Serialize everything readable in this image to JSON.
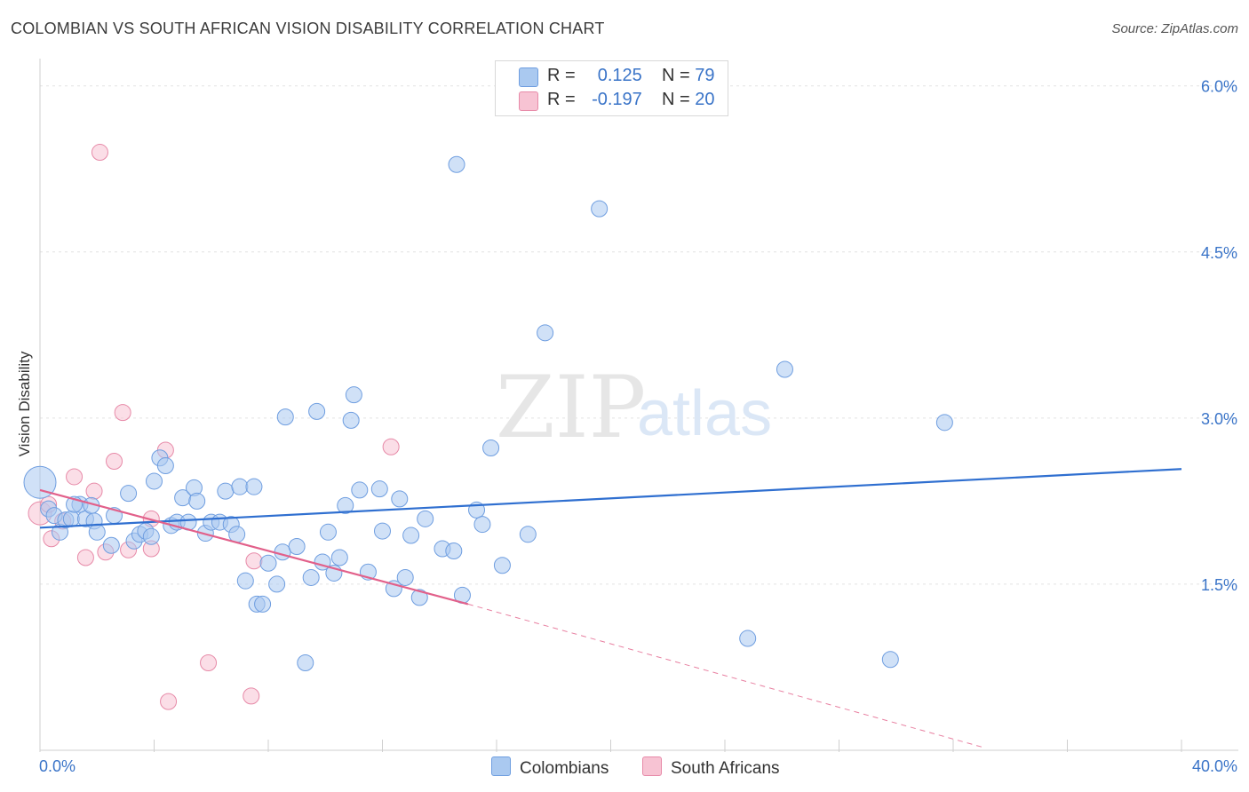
{
  "title": "COLOMBIAN VS SOUTH AFRICAN VISION DISABILITY CORRELATION CHART",
  "source": "Source: ZipAtlas.com",
  "watermark": {
    "zip": "ZIP",
    "atlas": "atlas"
  },
  "legend": {
    "rows": [
      {
        "r_label": "R =",
        "r_value": "0.125",
        "n_label": "N =",
        "n_value": "79",
        "color": "#aac9f0",
        "border": "#6f9ee0"
      },
      {
        "r_label": "R =",
        "r_value": "-0.197",
        "n_label": "N =",
        "n_value": "20",
        "color": "#f7c3d3",
        "border": "#e78aa8"
      }
    ]
  },
  "bottom_legend": [
    {
      "label": "Colombians",
      "color": "#aac9f0",
      "border": "#6f9ee0"
    },
    {
      "label": "South Africans",
      "color": "#f7c3d3",
      "border": "#e78aa8"
    }
  ],
  "chart_data": {
    "type": "scatter",
    "title": "COLOMBIAN VS SOUTH AFRICAN VISION DISABILITY CORRELATION CHART",
    "xlabel": "",
    "ylabel": "Vision Disability",
    "xlim": [
      0,
      40
    ],
    "ylim": [
      0,
      6.15
    ],
    "x_tick_labels": [
      "0.0%",
      "40.0%"
    ],
    "y_ticks": [
      1.5,
      3.0,
      4.5,
      6.0
    ],
    "y_tick_labels": [
      "1.5%",
      "3.0%",
      "4.5%",
      "6.0%"
    ],
    "grid": true,
    "legend_position": "top-center",
    "series": [
      {
        "name": "Colombians",
        "color": "#6f9ee0",
        "fill": "#aac9f0",
        "trend": {
          "x": [
            0,
            40
          ],
          "y": [
            2.01,
            2.54
          ],
          "color": "#2f6fd0"
        },
        "points": [
          [
            0.0,
            2.42
          ],
          [
            0.3,
            2.18
          ],
          [
            0.5,
            2.12
          ],
          [
            0.7,
            1.97
          ],
          [
            0.9,
            2.08
          ],
          [
            1.1,
            2.09
          ],
          [
            1.4,
            2.22
          ],
          [
            1.6,
            2.09
          ],
          [
            1.8,
            2.21
          ],
          [
            1.9,
            2.07
          ],
          [
            2.0,
            1.97
          ],
          [
            2.6,
            2.12
          ],
          [
            2.5,
            1.85
          ],
          [
            3.1,
            2.32
          ],
          [
            3.3,
            1.89
          ],
          [
            3.5,
            1.95
          ],
          [
            3.7,
            1.98
          ],
          [
            3.9,
            1.93
          ],
          [
            4.0,
            2.43
          ],
          [
            4.2,
            2.64
          ],
          [
            4.4,
            2.57
          ],
          [
            4.6,
            2.03
          ],
          [
            4.8,
            2.06
          ],
          [
            5.0,
            2.28
          ],
          [
            5.2,
            2.06
          ],
          [
            5.4,
            2.37
          ],
          [
            5.5,
            2.25
          ],
          [
            5.8,
            1.96
          ],
          [
            6.0,
            2.06
          ],
          [
            6.3,
            2.06
          ],
          [
            6.5,
            2.34
          ],
          [
            6.7,
            2.04
          ],
          [
            6.9,
            1.95
          ],
          [
            7.0,
            2.38
          ],
          [
            7.5,
            2.38
          ],
          [
            7.2,
            1.53
          ],
          [
            7.6,
            1.32
          ],
          [
            7.8,
            1.32
          ],
          [
            8.0,
            1.69
          ],
          [
            8.3,
            1.5
          ],
          [
            8.5,
            1.79
          ],
          [
            8.6,
            3.01
          ],
          [
            9.0,
            1.84
          ],
          [
            9.3,
            0.79
          ],
          [
            9.5,
            1.56
          ],
          [
            9.7,
            3.06
          ],
          [
            9.9,
            1.7
          ],
          [
            10.1,
            1.97
          ],
          [
            10.3,
            1.6
          ],
          [
            10.5,
            1.74
          ],
          [
            10.7,
            2.21
          ],
          [
            10.9,
            2.98
          ],
          [
            11.0,
            3.21
          ],
          [
            11.2,
            2.35
          ],
          [
            11.5,
            1.61
          ],
          [
            11.9,
            2.36
          ],
          [
            12.0,
            1.98
          ],
          [
            12.4,
            1.46
          ],
          [
            12.6,
            2.27
          ],
          [
            12.8,
            1.56
          ],
          [
            13.0,
            1.94
          ],
          [
            13.3,
            1.38
          ],
          [
            13.5,
            2.09
          ],
          [
            14.1,
            1.82
          ],
          [
            14.5,
            1.8
          ],
          [
            14.6,
            5.29
          ],
          [
            14.8,
            1.4
          ],
          [
            15.3,
            2.17
          ],
          [
            15.5,
            2.04
          ],
          [
            15.8,
            2.73
          ],
          [
            16.2,
            1.67
          ],
          [
            17.1,
            1.95
          ],
          [
            17.7,
            3.77
          ],
          [
            19.6,
            4.89
          ],
          [
            24.8,
            1.01
          ],
          [
            26.1,
            3.44
          ],
          [
            29.8,
            0.82
          ],
          [
            31.7,
            2.96
          ],
          [
            1.2,
            2.22
          ]
        ]
      },
      {
        "name": "South Africans",
        "color": "#e78aa8",
        "fill": "#f7c3d3",
        "trend": {
          "x": [
            0,
            15
          ],
          "y": [
            2.35,
            1.32
          ],
          "color": "#e2608a"
        },
        "trend_extension": {
          "x": [
            15,
            33
          ],
          "y": [
            1.32,
            0.03
          ]
        },
        "points": [
          [
            0.0,
            2.14
          ],
          [
            0.3,
            2.22
          ],
          [
            0.4,
            1.91
          ],
          [
            0.8,
            2.07
          ],
          [
            1.2,
            2.47
          ],
          [
            1.6,
            1.74
          ],
          [
            1.9,
            2.34
          ],
          [
            2.1,
            5.4
          ],
          [
            2.3,
            1.79
          ],
          [
            2.6,
            2.61
          ],
          [
            2.9,
            3.05
          ],
          [
            3.1,
            1.81
          ],
          [
            3.9,
            2.09
          ],
          [
            3.9,
            1.82
          ],
          [
            4.4,
            2.71
          ],
          [
            4.5,
            0.44
          ],
          [
            5.9,
            0.79
          ],
          [
            7.4,
            0.49
          ],
          [
            7.5,
            1.71
          ],
          [
            12.3,
            2.74
          ]
        ]
      }
    ]
  }
}
